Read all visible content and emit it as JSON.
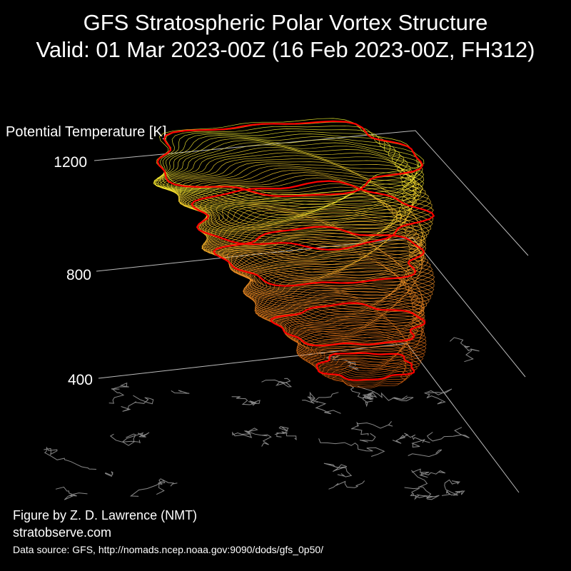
{
  "header": {
    "title_line1": "GFS Stratospheric Polar Vortex Structure",
    "title_line2": "Valid: 01 Mar 2023-00Z  (16 Feb 2023-00Z, FH312)"
  },
  "footer": {
    "credit": "Figure by Z. D. Lawrence (NMT)",
    "website": "stratobserve.com",
    "source": "Data source: GFS, http://nomads.ncep.noaa.gov:9090/dods/gfs_0p50/"
  },
  "chart_data": {
    "type": "3d-isosurface",
    "zlabel": "Potential Temperature [K]",
    "z_ticks": [
      1200,
      800,
      400
    ],
    "zlim": [
      350,
      1250
    ],
    "colors": {
      "background": "#000000",
      "axes": "#bbbbbb",
      "coastline": "#888888",
      "contour_low": "#d95f0e",
      "contour_mid": "#fe9929",
      "contour_high": "#ffff33",
      "highlight_levels": "#ff0000"
    }
  }
}
